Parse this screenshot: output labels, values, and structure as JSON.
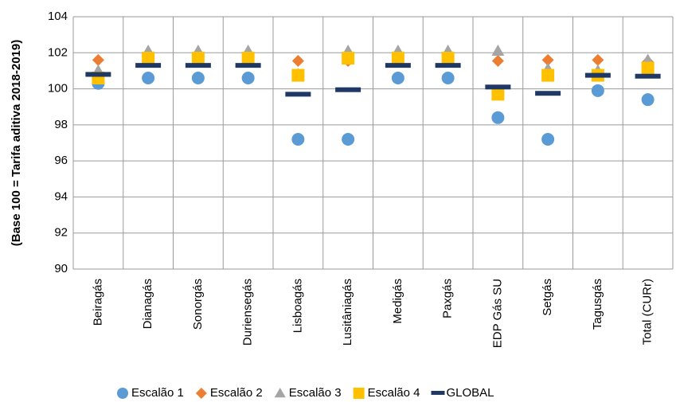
{
  "chart_data": {
    "type": "scatter",
    "ylabel": "(Base 100 = Tarifa aditiva 2018-2019)",
    "ylim": [
      90,
      104
    ],
    "yticks": [
      "90",
      "92",
      "94",
      "96",
      "98",
      "100",
      "102",
      "104"
    ],
    "categories": [
      "Beiragás",
      "Dianagás",
      "Sonorgás",
      "Duriensegás",
      "Lisboagás",
      "Lusitâniagás",
      "Medigás",
      "Paxgás",
      "EDP Gás SU",
      "Setgás",
      "Tagusgás",
      "Total (CURr)"
    ],
    "grid": true,
    "legend_position": "bottom",
    "series": [
      {
        "name": "Escalão 1",
        "marker": "circle",
        "color": "#5B9BD5",
        "values": [
          100.3,
          100.6,
          100.6,
          100.6,
          97.2,
          97.2,
          100.6,
          100.6,
          98.4,
          97.2,
          99.9,
          99.4
        ]
      },
      {
        "name": "Escalão 2",
        "marker": "diamond",
        "color": "#ED7D31",
        "values": [
          101.6,
          101.8,
          101.8,
          101.8,
          101.55,
          101.55,
          101.8,
          101.8,
          101.55,
          101.6,
          101.6,
          101.5
        ]
      },
      {
        "name": "Escalão 3",
        "marker": "triangle",
        "color": "#A5A5A5",
        "values": [
          101.0,
          102.1,
          102.1,
          102.1,
          100.8,
          102.1,
          102.1,
          102.1,
          102.1,
          101.1,
          101.0,
          101.6
        ]
      },
      {
        "name": "Escalão 4",
        "marker": "square",
        "color": "#FFC000",
        "values": [
          100.6,
          101.7,
          101.7,
          101.7,
          100.75,
          101.7,
          101.7,
          101.7,
          99.7,
          100.75,
          100.75,
          101.15
        ]
      },
      {
        "name": "GLOBAL",
        "marker": "dash",
        "color": "#203864",
        "values": [
          100.8,
          101.3,
          101.3,
          101.3,
          99.7,
          99.95,
          101.3,
          101.3,
          100.1,
          99.75,
          100.75,
          100.7
        ]
      }
    ]
  }
}
